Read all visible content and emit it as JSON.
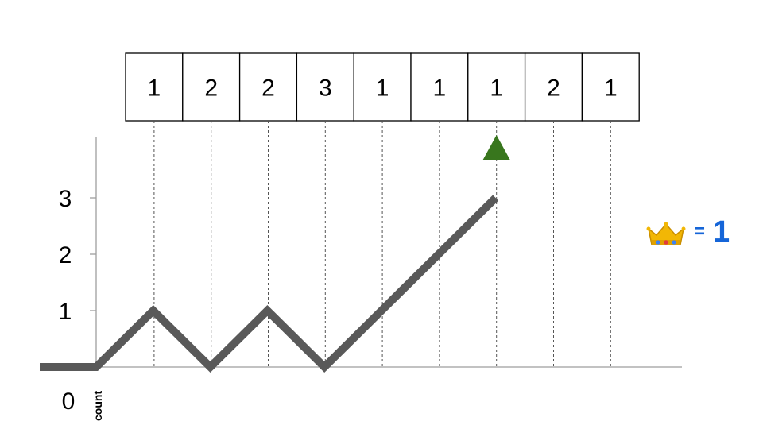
{
  "sequence": [
    "1",
    "2",
    "2",
    "3",
    "1",
    "1",
    "1",
    "2",
    "1"
  ],
  "pointer_index": 6,
  "y_ticks": [
    "1",
    "2",
    "3"
  ],
  "origin_label": "0",
  "count_label": "count",
  "count_path": [
    0,
    1,
    0,
    1,
    0,
    1,
    2,
    3
  ],
  "score": {
    "icon": "crown-icon",
    "equals": "=",
    "value": "1"
  },
  "colors": {
    "path": "#595959",
    "pointer": "#38761d",
    "score": "#1565d8",
    "crown": "#f2b705"
  }
}
